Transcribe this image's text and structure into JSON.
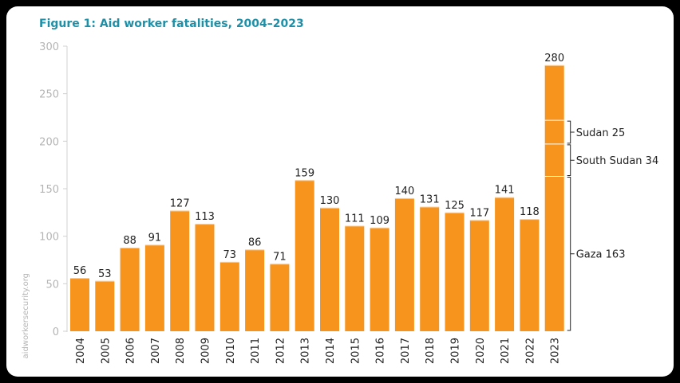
{
  "chart_data": {
    "type": "bar",
    "title": "Figure 1: Aid worker fatalities, 2004–2023",
    "source": "aidworkersecurity.org",
    "categories": [
      "2004",
      "2005",
      "2006",
      "2007",
      "2008",
      "2009",
      "2010",
      "2011",
      "2012",
      "2013",
      "2014",
      "2015",
      "2016",
      "2017",
      "2018",
      "2019",
      "2020",
      "2021",
      "2022",
      "2023"
    ],
    "values": [
      56,
      53,
      88,
      91,
      127,
      113,
      73,
      86,
      71,
      159,
      130,
      111,
      109,
      140,
      131,
      125,
      117,
      141,
      118,
      280
    ],
    "ylim": [
      0,
      300
    ],
    "yticks": [
      0,
      50,
      100,
      150,
      200,
      250,
      300
    ],
    "grid": false,
    "bar_color": "#f7941d",
    "breakdown_2023": [
      {
        "label": "Gaza 163",
        "value": 163
      },
      {
        "label": "South Sudan 34",
        "value": 34
      },
      {
        "label": "Sudan 25",
        "value": 25
      }
    ]
  }
}
